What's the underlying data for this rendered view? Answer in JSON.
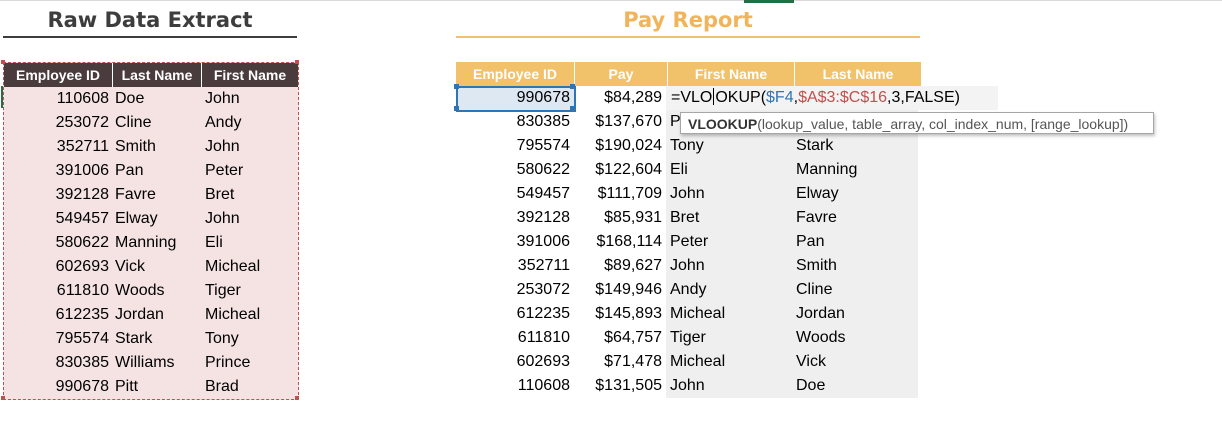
{
  "raw": {
    "title": "Raw Data Extract",
    "headers": [
      "Employee ID",
      "Last Name",
      "First Name"
    ],
    "rows": [
      [
        "110608",
        "Doe",
        "John"
      ],
      [
        "253072",
        "Cline",
        "Andy"
      ],
      [
        "352711",
        "Smith",
        "John"
      ],
      [
        "391006",
        "Pan",
        "Peter"
      ],
      [
        "392128",
        "Favre",
        "Bret"
      ],
      [
        "549457",
        "Elway",
        "John"
      ],
      [
        "580622",
        "Manning",
        "Eli"
      ],
      [
        "602693",
        "Vick",
        "Micheal"
      ],
      [
        "611810",
        "Woods",
        "Tiger"
      ],
      [
        "612235",
        "Jordan",
        "Micheal"
      ],
      [
        "795574",
        "Stark",
        "Tony"
      ],
      [
        "830385",
        "Williams",
        "Prince"
      ],
      [
        "990678",
        "Pitt",
        "Brad"
      ]
    ]
  },
  "pay": {
    "title": "Pay Report",
    "headers": [
      "Employee ID",
      "Pay",
      "First Name",
      "Last Name"
    ],
    "rows": [
      [
        "990678",
        "$84,289",
        "",
        ""
      ],
      [
        "830385",
        "$137,670",
        "P",
        ""
      ],
      [
        "795574",
        "$190,024",
        "Tony",
        "Stark"
      ],
      [
        "580622",
        "$122,604",
        "Eli",
        "Manning"
      ],
      [
        "549457",
        "$111,709",
        "John",
        "Elway"
      ],
      [
        "392128",
        "$85,931",
        "Bret",
        "Favre"
      ],
      [
        "391006",
        "$168,114",
        "Peter",
        "Pan"
      ],
      [
        "352711",
        "$89,627",
        "John",
        "Smith"
      ],
      [
        "253072",
        "$149,946",
        "Andy",
        "Cline"
      ],
      [
        "612235",
        "$145,893",
        "Micheal",
        "Jordan"
      ],
      [
        "611810",
        "$64,757",
        "Tiger",
        "Woods"
      ],
      [
        "602693",
        "$71,478",
        "Micheal",
        "Vick"
      ],
      [
        "110608",
        "$131,505",
        "John",
        "Doe"
      ]
    ]
  },
  "formula": {
    "p1": "=VLO",
    "p2": "OKUP(",
    "p3": "$F4",
    "p4": ",",
    "p5": "$A$3:$C$16",
    "p6": ",3,FALSE)"
  },
  "tooltip": {
    "func": "VLOOKUP",
    "args": "(lookup_value, table_array, col_index_num, [range_lookup])"
  },
  "colors": {
    "raw_header_bg": "#4a3c3c",
    "raw_body_bg": "#f5e3e3",
    "pay_header_bg": "#f2c26a",
    "selection": "#2e75b6"
  }
}
